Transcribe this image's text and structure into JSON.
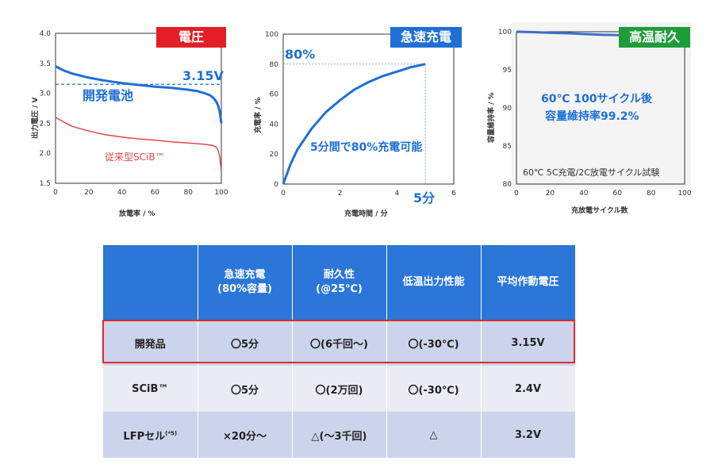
{
  "chart_data": [
    {
      "type": "line",
      "tag": "電圧",
      "tag_color": "#e41e26",
      "xlabel": "放電率 / %",
      "ylabel": "出力電圧 / V",
      "xlim": [
        0,
        100
      ],
      "ylim": [
        1.5,
        4.0
      ],
      "xticks": [
        "0",
        "20",
        "40",
        "60",
        "80",
        "100"
      ],
      "yticks": [
        "4.0",
        "3.5",
        "3.0",
        "2.5",
        "2.0",
        "1.5"
      ],
      "series": [
        {
          "name": "開発電池",
          "color": "#1f6fd6",
          "x": [
            0,
            5,
            10,
            20,
            30,
            40,
            50,
            60,
            70,
            80,
            85,
            90,
            93,
            95,
            97,
            98,
            99,
            100
          ],
          "y": [
            3.45,
            3.38,
            3.33,
            3.26,
            3.21,
            3.17,
            3.14,
            3.11,
            3.09,
            3.06,
            3.04,
            3.0,
            2.97,
            2.93,
            2.86,
            2.8,
            2.7,
            2.5
          ]
        },
        {
          "name": "従来型SCiB™",
          "color": "#e24848",
          "x": [
            0,
            5,
            10,
            20,
            30,
            40,
            50,
            60,
            70,
            80,
            90,
            95,
            97,
            98,
            99,
            100
          ],
          "y": [
            2.6,
            2.52,
            2.45,
            2.37,
            2.31,
            2.27,
            2.24,
            2.22,
            2.19,
            2.17,
            2.15,
            2.13,
            2.1,
            2.05,
            1.95,
            1.7
          ]
        }
      ],
      "reference": {
        "value": 3.15,
        "label": "3.15V"
      }
    },
    {
      "type": "line",
      "tag": "急速充電",
      "tag_color": "#1f6fd6",
      "xlabel": "充電時間 / 分",
      "ylabel": "充電率 / %",
      "xlim": [
        0,
        6
      ],
      "ylim": [
        0,
        100
      ],
      "xticks": [
        "0",
        "2",
        "4",
        "6"
      ],
      "yticks": [
        "100",
        "80",
        "60",
        "40",
        "20",
        "0"
      ],
      "series": [
        {
          "color": "#1f6fd6",
          "x": [
            0,
            0.25,
            0.5,
            1,
            1.5,
            2,
            2.5,
            3,
            3.5,
            4,
            4.5,
            5
          ],
          "y": [
            0,
            13,
            23,
            37,
            48,
            56,
            63,
            68,
            72,
            75,
            78,
            80
          ]
        }
      ],
      "annotations": {
        "point_label": "80%",
        "x_label": "5分",
        "caption": "5分間で80%充電可能"
      }
    },
    {
      "type": "line",
      "tag": "高温耐久",
      "tag_color": "#1f9c3a",
      "xlabel": "充放電サイクル数",
      "ylabel": "容量維持率 / %",
      "xlim": [
        0,
        100
      ],
      "ylim": [
        80,
        100
      ],
      "xticks": [
        "0",
        "20",
        "40",
        "60",
        "80",
        "100"
      ],
      "yticks": [
        "100",
        "95",
        "90",
        "85",
        "80"
      ],
      "series": [
        {
          "color": "#3b6fc8",
          "x": [
            0,
            10,
            20,
            30,
            40,
            50,
            60,
            70,
            80,
            90,
            100
          ],
          "y": [
            100.0,
            99.95,
            99.85,
            99.8,
            99.7,
            99.6,
            99.55,
            99.45,
            99.4,
            99.3,
            99.2
          ]
        }
      ],
      "annotations": {
        "line1": "60℃ 100サイクル後",
        "line2": "容量維持率99.2%",
        "note": "60℃ 5C充電/2C放電サイクル試験"
      }
    }
  ],
  "table": {
    "headers": [
      "",
      "急速充電\n(80%容量)",
      "耐久性\n(@25℃)",
      "低温出力性能",
      "平均作動電圧"
    ],
    "rows": [
      {
        "name": "開発品",
        "cells": [
          "〇5分",
          "〇(6千回〜)",
          "〇(-30℃)",
          "3.15V"
        ]
      },
      {
        "name": "SCiB™",
        "cells": [
          "〇5分",
          "〇(2万回)",
          "〇(-30℃)",
          "2.4V"
        ]
      },
      {
        "name": "LFPセル",
        "sup": "(*5)",
        "cells": [
          "×20分〜",
          "△(〜3千回)",
          "△",
          "3.2V"
        ]
      }
    ]
  }
}
